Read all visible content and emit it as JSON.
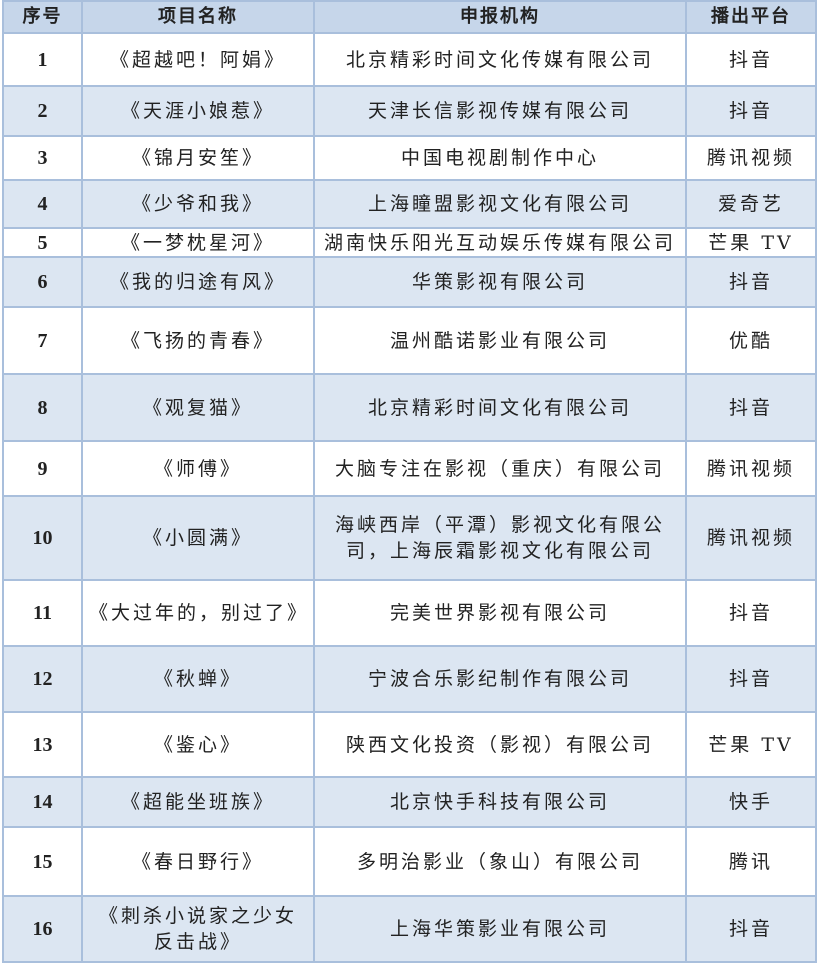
{
  "headers": [
    "序号",
    "项目名称",
    "申报机构",
    "播出平台"
  ],
  "rows": [
    {
      "no": "1",
      "name": "《超越吧！阿娟》",
      "org": "北京精彩时间文化传媒有限公司",
      "platform": "抖音"
    },
    {
      "no": "2",
      "name": "《天涯小娘惹》",
      "org": "天津长信影视传媒有限公司",
      "platform": "抖音"
    },
    {
      "no": "3",
      "name": "《锦月安笙》",
      "org": "中国电视剧制作中心",
      "platform": "腾讯视频"
    },
    {
      "no": "4",
      "name": "《少爷和我》",
      "org": "上海瞳盟影视文化有限公司",
      "platform": "爱奇艺"
    },
    {
      "no": "5",
      "name": "《一梦枕星河》",
      "org": "湖南快乐阳光互动娱乐传媒有限公司",
      "platform": "芒果 TV"
    },
    {
      "no": "6",
      "name": "《我的归途有风》",
      "org": "华策影视有限公司",
      "platform": "抖音"
    },
    {
      "no": "7",
      "name": "《飞扬的青春》",
      "org": "温州酷诺影业有限公司",
      "platform": "优酷"
    },
    {
      "no": "8",
      "name": "《观复猫》",
      "org": "北京精彩时间文化有限公司",
      "platform": "抖音"
    },
    {
      "no": "9",
      "name": "《师傅》",
      "org": "大脑专注在影视（重庆）有限公司",
      "platform": "腾讯视频"
    },
    {
      "no": "10",
      "name": "《小圆满》",
      "org": "海峡西岸（平潭）影视文化有限公司，上海辰霜影视文化有限公司",
      "platform": "腾讯视频"
    },
    {
      "no": "11",
      "name": "《大过年的，别过了》",
      "org": "完美世界影视有限公司",
      "platform": "抖音"
    },
    {
      "no": "12",
      "name": "《秋蝉》",
      "org": "宁波合乐影纪制作有限公司",
      "platform": "抖音"
    },
    {
      "no": "13",
      "name": "《鉴心》",
      "org": "陕西文化投资（影视）有限公司",
      "platform": "芒果 TV"
    },
    {
      "no": "14",
      "name": "《超能坐班族》",
      "org": "北京快手科技有限公司",
      "platform": "快手"
    },
    {
      "no": "15",
      "name": "《春日野行》",
      "org": "多明治影业（象山）有限公司",
      "platform": "腾讯"
    },
    {
      "no": "16",
      "name": "《刺杀小说家之少女反击战》",
      "org": "上海华策影业有限公司",
      "platform": "抖音"
    }
  ]
}
